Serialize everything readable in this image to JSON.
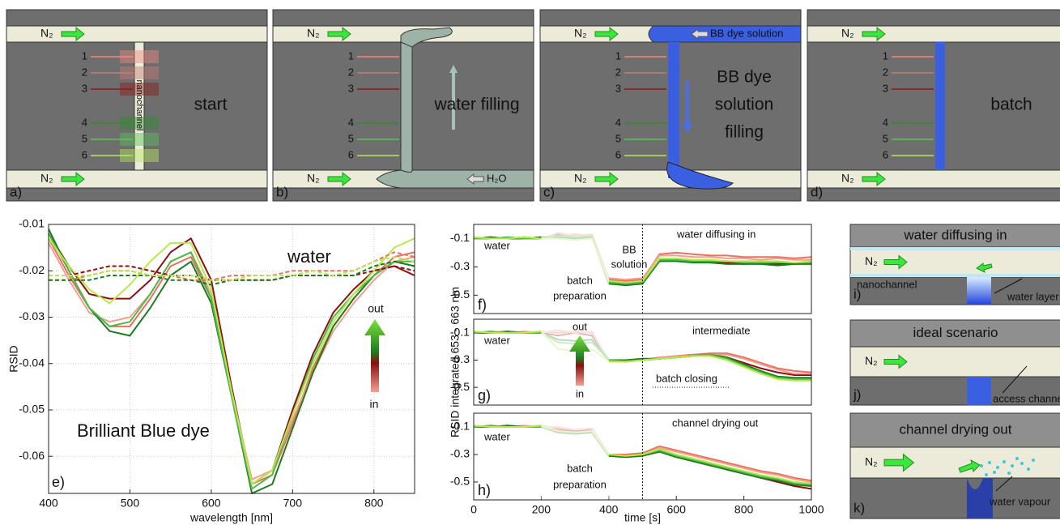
{
  "schematic": {
    "panels": [
      {
        "label": "a)",
        "n2": [
          "N₂",
          "N₂"
        ],
        "levels": [
          1,
          2,
          3,
          4,
          5,
          6
        ],
        "caption": [
          "start"
        ],
        "channel": "nanochannel"
      },
      {
        "label": "b)",
        "n2": [
          "N₂",
          "N₂"
        ],
        "levels": [
          1,
          2,
          3,
          4,
          5,
          6
        ],
        "caption": [
          "water filling"
        ],
        "inlet": "H₂O"
      },
      {
        "label": "c)",
        "n2": [
          "N₂",
          "N₂"
        ],
        "levels": [
          1,
          2,
          3,
          4,
          5,
          6
        ],
        "caption": [
          "BB dye",
          "solution",
          "filling"
        ],
        "inlet": "BB dye solution"
      },
      {
        "label": "d)",
        "n2": [
          "N₂",
          "N₂"
        ],
        "levels": [
          1,
          2,
          3,
          4,
          5,
          6
        ],
        "caption": [
          "batch"
        ]
      }
    ],
    "insets": [
      {
        "title": "water diffusing in",
        "n2": "N₂",
        "labels": [
          "nanochannel",
          "water layer"
        ],
        "label": "i)"
      },
      {
        "title": "ideal scenario",
        "n2": "N₂",
        "labels": [
          "access channel"
        ],
        "label": "j)"
      },
      {
        "title": "channel drying out",
        "n2": "N₂",
        "labels": [
          "water vapour"
        ],
        "label": "k)"
      }
    ]
  },
  "chart_data": [
    {
      "type": "line",
      "xlabel": "wavelength [nm]",
      "ylabel": "RSID",
      "grid": true,
      "xlim": [
        400,
        850
      ],
      "ylim": [
        -0.068,
        -0.01
      ],
      "xticks": [
        400,
        500,
        600,
        700,
        800
      ],
      "yticks": [
        -0.01,
        -0.02,
        -0.03,
        -0.04,
        -0.05,
        -0.06
      ],
      "annotations": [
        "water",
        "Brilliant Blue dye",
        "out",
        "in",
        "e)"
      ],
      "x": [
        400,
        425,
        450,
        475,
        500,
        525,
        550,
        575,
        600,
        625,
        650,
        675,
        700,
        725,
        750,
        775,
        800,
        825,
        850
      ],
      "series": [
        {
          "color": "#8b1010",
          "values": [
            -0.012,
            -0.019,
            -0.025,
            -0.026,
            -0.026,
            -0.022,
            -0.016,
            -0.013,
            -0.022,
            -0.045,
            -0.066,
            -0.063,
            -0.05,
            -0.038,
            -0.029,
            -0.024,
            -0.02,
            -0.019,
            -0.021
          ]
        },
        {
          "color": "#e8705f",
          "values": [
            -0.013,
            -0.021,
            -0.028,
            -0.032,
            -0.032,
            -0.026,
            -0.019,
            -0.017,
            -0.026,
            -0.046,
            -0.066,
            -0.064,
            -0.053,
            -0.041,
            -0.032,
            -0.026,
            -0.021,
            -0.017,
            -0.016
          ]
        },
        {
          "color": "#f4a090",
          "values": [
            -0.014,
            -0.022,
            -0.029,
            -0.031,
            -0.03,
            -0.025,
            -0.018,
            -0.016,
            -0.025,
            -0.046,
            -0.065,
            -0.063,
            -0.052,
            -0.042,
            -0.033,
            -0.027,
            -0.022,
            -0.018,
            -0.017
          ]
        },
        {
          "color": "#1e7b1e",
          "values": [
            -0.011,
            -0.02,
            -0.028,
            -0.033,
            -0.034,
            -0.028,
            -0.021,
            -0.018,
            -0.027,
            -0.047,
            -0.068,
            -0.066,
            -0.054,
            -0.042,
            -0.032,
            -0.026,
            -0.021,
            -0.018,
            -0.019
          ]
        },
        {
          "color": "#4cbb4c",
          "values": [
            -0.012,
            -0.02,
            -0.028,
            -0.032,
            -0.031,
            -0.025,
            -0.018,
            -0.016,
            -0.026,
            -0.047,
            -0.067,
            -0.064,
            -0.051,
            -0.039,
            -0.03,
            -0.025,
            -0.021,
            -0.018,
            -0.018
          ]
        },
        {
          "color": "#b8e84a",
          "values": [
            -0.013,
            -0.019,
            -0.024,
            -0.027,
            -0.023,
            -0.018,
            -0.014,
            -0.014,
            -0.024,
            -0.046,
            -0.066,
            -0.063,
            -0.051,
            -0.04,
            -0.031,
            -0.025,
            -0.02,
            -0.015,
            -0.013
          ]
        },
        {
          "color": "#8b1010",
          "dashed": true,
          "values": [
            -0.021,
            -0.021,
            -0.02,
            -0.019,
            -0.019,
            -0.02,
            -0.021,
            -0.021,
            -0.022,
            -0.022,
            -0.022,
            -0.022,
            -0.021,
            -0.021,
            -0.021,
            -0.021,
            -0.02,
            -0.019,
            -0.02
          ]
        },
        {
          "color": "#e8705f",
          "dashed": true,
          "values": [
            -0.022,
            -0.022,
            -0.021,
            -0.02,
            -0.02,
            -0.021,
            -0.021,
            -0.022,
            -0.022,
            -0.021,
            -0.021,
            -0.021,
            -0.02,
            -0.02,
            -0.02,
            -0.02,
            -0.018,
            -0.016,
            -0.017
          ]
        },
        {
          "color": "#1e7b1e",
          "dashed": true,
          "values": [
            -0.022,
            -0.022,
            -0.022,
            -0.021,
            -0.021,
            -0.021,
            -0.022,
            -0.022,
            -0.023,
            -0.022,
            -0.022,
            -0.022,
            -0.021,
            -0.021,
            -0.021,
            -0.021,
            -0.019,
            -0.018,
            -0.019
          ]
        },
        {
          "color": "#b8e84a",
          "dashed": true,
          "values": [
            -0.021,
            -0.021,
            -0.021,
            -0.02,
            -0.02,
            -0.021,
            -0.021,
            -0.021,
            -0.022,
            -0.022,
            -0.021,
            -0.021,
            -0.021,
            -0.02,
            -0.021,
            -0.02,
            -0.018,
            -0.017,
            -0.018
          ]
        }
      ]
    },
    {
      "type": "line",
      "xlim": [
        0,
        1000
      ],
      "ylim": [
        -0.63,
        0
      ],
      "yticks": [
        -0.1,
        -0.3,
        -0.5
      ],
      "faded_xrange": [
        200,
        400
      ],
      "marker_x": 500,
      "annotations": [
        "water",
        "batch",
        "preparation",
        "BB",
        "solution",
        "water diffusing in",
        "f)"
      ],
      "x": [
        0,
        50,
        100,
        150,
        200,
        250,
        300,
        350,
        400,
        450,
        500,
        550,
        600,
        650,
        700,
        750,
        800,
        850,
        900,
        950,
        1000
      ],
      "series": [
        {
          "color": "#8b1010",
          "values": [
            -0.1,
            -0.09,
            -0.1,
            -0.09,
            -0.1,
            -0.07,
            -0.08,
            -0.07,
            -0.4,
            -0.41,
            -0.4,
            -0.26,
            -0.25,
            -0.26,
            -0.27,
            -0.27,
            -0.28,
            -0.27,
            -0.28,
            -0.28,
            -0.27
          ]
        },
        {
          "color": "#e8705f",
          "values": [
            -0.1,
            -0.1,
            -0.09,
            -0.1,
            -0.09,
            -0.08,
            -0.07,
            -0.08,
            -0.39,
            -0.4,
            -0.39,
            -0.21,
            -0.2,
            -0.21,
            -0.22,
            -0.22,
            -0.23,
            -0.23,
            -0.23,
            -0.24,
            -0.23
          ]
        },
        {
          "color": "#f4a090",
          "values": [
            -0.09,
            -0.1,
            -0.1,
            -0.09,
            -0.1,
            -0.06,
            -0.08,
            -0.07,
            -0.38,
            -0.39,
            -0.38,
            -0.22,
            -0.22,
            -0.23,
            -0.23,
            -0.24,
            -0.24,
            -0.25,
            -0.24,
            -0.25,
            -0.25
          ]
        },
        {
          "color": "#1e7b1e",
          "values": [
            -0.1,
            -0.09,
            -0.1,
            -0.1,
            -0.09,
            -0.09,
            -0.1,
            -0.09,
            -0.42,
            -0.43,
            -0.42,
            -0.26,
            -0.26,
            -0.27,
            -0.27,
            -0.28,
            -0.28,
            -0.28,
            -0.29,
            -0.28,
            -0.28
          ]
        },
        {
          "color": "#4cbb4c",
          "values": [
            -0.1,
            -0.1,
            -0.09,
            -0.1,
            -0.1,
            -0.08,
            -0.09,
            -0.08,
            -0.41,
            -0.42,
            -0.41,
            -0.25,
            -0.25,
            -0.26,
            -0.26,
            -0.26,
            -0.27,
            -0.27,
            -0.27,
            -0.27,
            -0.27
          ]
        },
        {
          "color": "#b8e84a",
          "values": [
            -0.09,
            -0.1,
            -0.1,
            -0.09,
            -0.1,
            -0.1,
            -0.11,
            -0.1,
            -0.4,
            -0.41,
            -0.4,
            -0.24,
            -0.24,
            -0.25,
            -0.25,
            -0.26,
            -0.26,
            -0.26,
            -0.26,
            -0.27,
            -0.26
          ]
        }
      ]
    },
    {
      "type": "line",
      "ylabel": "RSID integrated 653 - 663 nm",
      "xlim": [
        0,
        1000
      ],
      "ylim": [
        -0.63,
        0
      ],
      "yticks": [
        -0.1,
        -0.3,
        -0.5
      ],
      "faded_xrange": [
        200,
        400
      ],
      "marker_x": 500,
      "annotations": [
        "water",
        "out",
        "in",
        "intermediate",
        "batch closing",
        "g)"
      ],
      "x": [
        0,
        50,
        100,
        150,
        200,
        250,
        300,
        350,
        400,
        450,
        500,
        550,
        600,
        650,
        700,
        750,
        800,
        850,
        900,
        950,
        1000
      ],
      "series": [
        {
          "color": "#8b1010",
          "values": [
            -0.1,
            -0.1,
            -0.09,
            -0.1,
            -0.1,
            -0.12,
            -0.1,
            -0.12,
            -0.3,
            -0.31,
            -0.3,
            -0.29,
            -0.28,
            -0.27,
            -0.26,
            -0.28,
            -0.32,
            -0.36,
            -0.39,
            -0.41,
            -0.41
          ]
        },
        {
          "color": "#e8705f",
          "values": [
            -0.1,
            -0.09,
            -0.1,
            -0.1,
            -0.09,
            -0.1,
            -0.09,
            -0.1,
            -0.3,
            -0.3,
            -0.3,
            -0.28,
            -0.27,
            -0.26,
            -0.25,
            -0.25,
            -0.28,
            -0.32,
            -0.36,
            -0.38,
            -0.39
          ]
        },
        {
          "color": "#f4a090",
          "values": [
            -0.1,
            -0.1,
            -0.1,
            -0.09,
            -0.1,
            -0.08,
            -0.1,
            -0.09,
            -0.31,
            -0.31,
            -0.3,
            -0.28,
            -0.27,
            -0.27,
            -0.26,
            -0.26,
            -0.29,
            -0.33,
            -0.37,
            -0.4,
            -0.4
          ]
        },
        {
          "color": "#1e7b1e",
          "values": [
            -0.1,
            -0.1,
            -0.09,
            -0.1,
            -0.1,
            -0.15,
            -0.16,
            -0.15,
            -0.3,
            -0.3,
            -0.29,
            -0.29,
            -0.28,
            -0.27,
            -0.26,
            -0.28,
            -0.33,
            -0.38,
            -0.42,
            -0.43,
            -0.43
          ]
        },
        {
          "color": "#4cbb4c",
          "values": [
            -0.1,
            -0.09,
            -0.1,
            -0.1,
            -0.1,
            -0.17,
            -0.18,
            -0.17,
            -0.3,
            -0.31,
            -0.3,
            -0.29,
            -0.28,
            -0.27,
            -0.26,
            -0.29,
            -0.34,
            -0.39,
            -0.43,
            -0.44,
            -0.44
          ]
        },
        {
          "color": "#b8e84a",
          "values": [
            -0.09,
            -0.1,
            -0.1,
            -0.1,
            -0.09,
            -0.22,
            -0.23,
            -0.22,
            -0.31,
            -0.31,
            -0.3,
            -0.29,
            -0.28,
            -0.27,
            -0.27,
            -0.3,
            -0.35,
            -0.4,
            -0.44,
            -0.45,
            -0.45
          ]
        }
      ]
    },
    {
      "type": "line",
      "xlabel": "time [s]",
      "xlim": [
        0,
        1000
      ],
      "ylim": [
        -0.63,
        0
      ],
      "xticks": [
        0,
        200,
        400,
        600,
        800,
        1000
      ],
      "yticks": [
        -0.1,
        -0.3,
        -0.5
      ],
      "faded_xrange": [
        200,
        400
      ],
      "marker_x": 500,
      "annotations": [
        "water",
        "batch",
        "preparation",
        "channel drying out",
        "h)"
      ],
      "x": [
        0,
        50,
        100,
        150,
        200,
        250,
        300,
        350,
        400,
        450,
        500,
        550,
        600,
        650,
        700,
        750,
        800,
        850,
        900,
        950,
        1000
      ],
      "series": [
        {
          "color": "#8b1010",
          "values": [
            -0.1,
            -0.1,
            -0.09,
            -0.1,
            -0.1,
            -0.12,
            -0.13,
            -0.12,
            -0.3,
            -0.31,
            -0.3,
            -0.27,
            -0.31,
            -0.34,
            -0.37,
            -0.41,
            -0.44,
            -0.47,
            -0.5,
            -0.53,
            -0.55
          ]
        },
        {
          "color": "#e8705f",
          "values": [
            -0.1,
            -0.09,
            -0.1,
            -0.1,
            -0.09,
            -0.11,
            -0.12,
            -0.11,
            -0.3,
            -0.3,
            -0.29,
            -0.24,
            -0.27,
            -0.3,
            -0.33,
            -0.36,
            -0.39,
            -0.42,
            -0.44,
            -0.47,
            -0.49
          ]
        },
        {
          "color": "#f4a090",
          "values": [
            -0.1,
            -0.1,
            -0.1,
            -0.09,
            -0.1,
            -0.1,
            -0.12,
            -0.11,
            -0.31,
            -0.31,
            -0.3,
            -0.25,
            -0.28,
            -0.31,
            -0.34,
            -0.37,
            -0.4,
            -0.43,
            -0.45,
            -0.48,
            -0.5
          ]
        },
        {
          "color": "#1e7b1e",
          "values": [
            -0.1,
            -0.1,
            -0.09,
            -0.1,
            -0.1,
            -0.14,
            -0.15,
            -0.14,
            -0.31,
            -0.32,
            -0.31,
            -0.28,
            -0.32,
            -0.35,
            -0.38,
            -0.41,
            -0.44,
            -0.47,
            -0.49,
            -0.52,
            -0.53
          ]
        },
        {
          "color": "#4cbb4c",
          "values": [
            -0.1,
            -0.09,
            -0.1,
            -0.1,
            -0.1,
            -0.13,
            -0.14,
            -0.13,
            -0.3,
            -0.31,
            -0.3,
            -0.27,
            -0.31,
            -0.34,
            -0.37,
            -0.4,
            -0.43,
            -0.46,
            -0.48,
            -0.51,
            -0.52
          ]
        },
        {
          "color": "#b8e84a",
          "values": [
            -0.09,
            -0.1,
            -0.1,
            -0.1,
            -0.09,
            -0.13,
            -0.14,
            -0.13,
            -0.3,
            -0.31,
            -0.3,
            -0.26,
            -0.3,
            -0.33,
            -0.36,
            -0.39,
            -0.42,
            -0.45,
            -0.47,
            -0.5,
            -0.51
          ]
        }
      ]
    }
  ]
}
